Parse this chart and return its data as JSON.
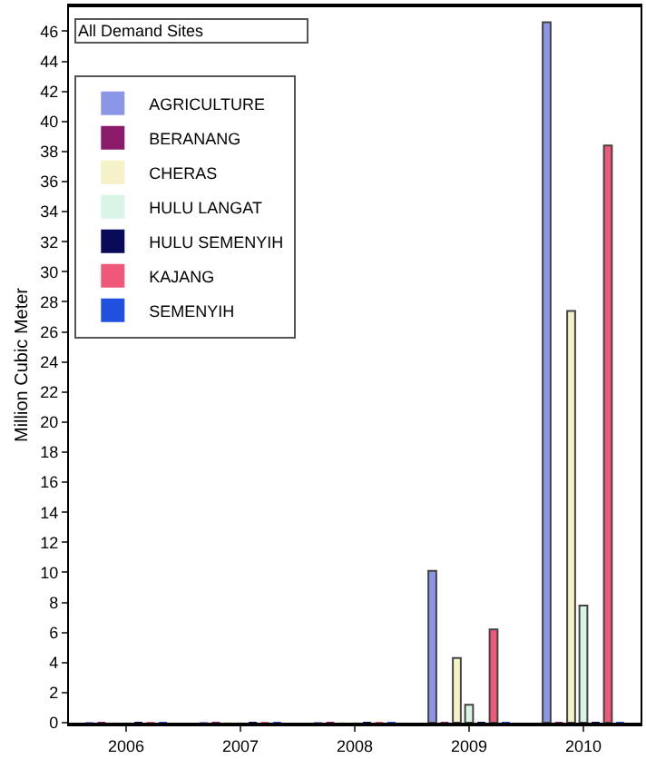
{
  "chart_data": {
    "type": "bar",
    "ylabel": "Million Cubic Meter",
    "categories": [
      "2006",
      "2007",
      "2008",
      "2009",
      "2010"
    ],
    "series": [
      {
        "name": "AGRICULTURE",
        "color": "#8c96e8",
        "values": [
          0,
          0,
          0,
          10.1,
          46.6
        ]
      },
      {
        "name": "BERANANG",
        "color": "#8b1a6b",
        "values": [
          0,
          0,
          0,
          0,
          0
        ]
      },
      {
        "name": "CHERAS",
        "color": "#f5f2c8",
        "values": [
          0,
          0,
          0,
          4.3,
          27.4
        ]
      },
      {
        "name": "HULU LANGAT",
        "color": "#d8f5e6",
        "values": [
          0,
          0,
          0,
          1.2,
          7.8
        ]
      },
      {
        "name": "HULU SEMENYIH",
        "color": "#0a0a5a",
        "values": [
          0,
          0,
          0,
          0,
          0
        ]
      },
      {
        "name": "KAJANG",
        "color": "#f0587a",
        "values": [
          0,
          0,
          0,
          6.2,
          38.4
        ]
      },
      {
        "name": "SEMENYIH",
        "color": "#2050e0",
        "values": [
          0,
          0,
          0,
          0,
          0
        ]
      }
    ],
    "annotations": [
      "All Demand Sites"
    ],
    "ylim": [
      0,
      47.6
    ],
    "yticks": [
      0,
      2,
      4,
      6,
      8,
      10,
      12,
      14,
      16,
      18,
      20,
      22,
      24,
      26,
      28,
      30,
      32,
      34,
      36,
      38,
      40,
      42,
      44,
      46
    ],
    "legend": "top left"
  }
}
